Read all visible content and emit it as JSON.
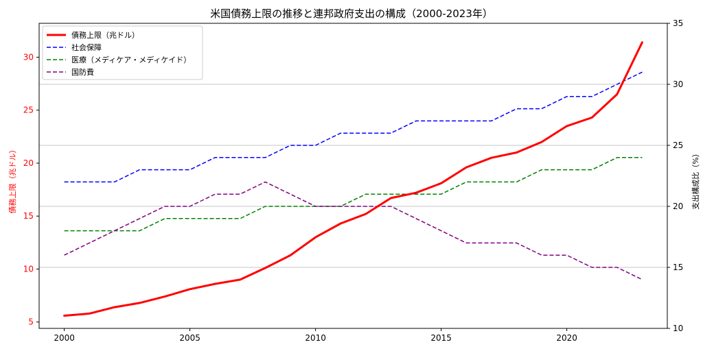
{
  "chart_data": {
    "type": "line",
    "title": "米国債務上限の推移と連邦政府支出の構成（2000-2023年）",
    "x": [
      2000,
      2001,
      2002,
      2003,
      2004,
      2005,
      2006,
      2007,
      2008,
      2009,
      2010,
      2011,
      2012,
      2013,
      2014,
      2015,
      2016,
      2017,
      2018,
      2019,
      2020,
      2021,
      2022,
      2023
    ],
    "left_axis": {
      "label": "債務上限（兆ドル）",
      "color": "#ff0000",
      "ylim": [
        4.4,
        33.2
      ],
      "ticks": [
        5,
        10,
        15,
        20,
        25,
        30
      ]
    },
    "right_axis": {
      "label": "支出構成比（%）",
      "color": "#000000",
      "ylim": [
        10,
        35
      ],
      "ticks": [
        10,
        15,
        20,
        25,
        30,
        35
      ]
    },
    "x_axis": {
      "xlim": [
        1999.0,
        2024.0
      ],
      "ticks": [
        2000,
        2005,
        2010,
        2015,
        2020
      ]
    },
    "grid": "horizontal-right-axis",
    "legend_position": "top-left",
    "series": [
      {
        "name": "債務上限（兆ドル）",
        "axis": "left",
        "color": "#ff0000",
        "style": "solid",
        "width": 3,
        "values": [
          5.6,
          5.8,
          6.4,
          6.8,
          7.4,
          8.1,
          8.6,
          9.0,
          10.1,
          11.3,
          13.0,
          14.3,
          15.2,
          16.7,
          17.2,
          18.1,
          19.6,
          20.5,
          21.0,
          22.0,
          23.5,
          24.3,
          26.5,
          31.4
        ]
      },
      {
        "name": "社会保障",
        "axis": "right",
        "color": "#0000ff",
        "style": "dashed",
        "width": 1.5,
        "values": [
          22,
          22,
          22,
          23,
          23,
          23,
          24,
          24,
          24,
          25,
          25,
          26,
          26,
          26,
          27,
          27,
          27,
          27,
          28,
          28,
          29,
          29,
          30,
          31
        ]
      },
      {
        "name": "医療（メディケア・メディケイド）",
        "axis": "right",
        "color": "#008000",
        "style": "dashed",
        "width": 1.5,
        "values": [
          18,
          18,
          18,
          18,
          19,
          19,
          19,
          19,
          20,
          20,
          20,
          20,
          21,
          21,
          21,
          21,
          22,
          22,
          22,
          23,
          23,
          23,
          24,
          24
        ]
      },
      {
        "name": "国防費",
        "axis": "right",
        "color": "#800080",
        "style": "dashed",
        "width": 1.5,
        "values": [
          16,
          17,
          18,
          19,
          20,
          20,
          21,
          21,
          22,
          21,
          20,
          20,
          20,
          20,
          19,
          18,
          17,
          17,
          17,
          16,
          16,
          15,
          15,
          14
        ]
      }
    ]
  }
}
